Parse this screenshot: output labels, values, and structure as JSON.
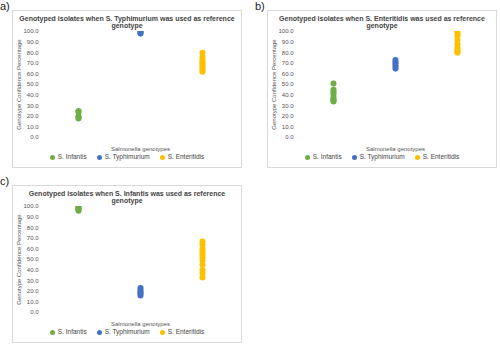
{
  "chart_data": [
    {
      "type": "scatter",
      "panel": "a)",
      "title": "Genotyped isolates when S. Typhimurium was used as reference genotype",
      "xlabel": "Salmonella genotypes",
      "ylabel": "Genotype Confidence Percentage",
      "ylim": [
        0,
        100
      ],
      "yticks": [
        {
          "value": 0,
          "label": "0.0"
        },
        {
          "value": 10,
          "label": "10.0"
        },
        {
          "value": 20,
          "label": "20.0"
        },
        {
          "value": 30,
          "label": "30.0"
        },
        {
          "value": 40,
          "label": "40.0"
        },
        {
          "value": 50,
          "label": "50.0"
        },
        {
          "value": 60,
          "label": "60.0"
        },
        {
          "value": 70,
          "label": "70.0"
        },
        {
          "value": 80,
          "label": "80.0"
        },
        {
          "value": 90,
          "label": "90.0"
        },
        {
          "value": 100,
          "label": "100.0"
        }
      ],
      "tick_labels": "y",
      "grid": false,
      "legend": "bottom",
      "series": [
        {
          "name": "S. Infantis",
          "color": "#70ad47",
          "values": [
            25,
            24,
            20,
            19,
            18
          ]
        },
        {
          "name": "S. Typhimurium",
          "color": "#4472c4",
          "values": [
            100,
            99,
            98
          ]
        },
        {
          "name": "S. Enteritidis",
          "color": "#ffc000",
          "values": [
            80,
            76,
            73,
            71,
            70,
            68,
            66,
            64,
            62
          ]
        }
      ]
    },
    {
      "type": "scatter",
      "panel": "b)",
      "title": "Genotyped isolates when S. Enteritidis was used as reference genotype",
      "xlabel": "Salmonella genotypes",
      "ylabel": "Genotype Confidence Percentage",
      "ylim": [
        0,
        100
      ],
      "yticks": [
        {
          "value": 0,
          "label": "0.0"
        },
        {
          "value": 10,
          "label": "10.0"
        },
        {
          "value": 20,
          "label": "20.0"
        },
        {
          "value": 30,
          "label": "30.0"
        },
        {
          "value": 40,
          "label": "40.0"
        },
        {
          "value": 50,
          "label": "50.0"
        },
        {
          "value": 60,
          "label": "60.0"
        },
        {
          "value": 70,
          "label": "70.0"
        },
        {
          "value": 80,
          "label": "80.0"
        },
        {
          "value": 90,
          "label": "90.0"
        },
        {
          "value": 100,
          "label": "100.0"
        }
      ],
      "tick_labels": "y",
      "grid": false,
      "legend": "bottom",
      "series": [
        {
          "name": "S. Infantis",
          "color": "#70ad47",
          "values": [
            51,
            45,
            43,
            41,
            38,
            36,
            35,
            34
          ]
        },
        {
          "name": "S. Typhimurium",
          "color": "#4472c4",
          "values": [
            73,
            71,
            69,
            67,
            65
          ]
        },
        {
          "name": "S. Enteritidis",
          "color": "#ffc000",
          "values": [
            100,
            98,
            96,
            92,
            88,
            85,
            83,
            81,
            80
          ]
        }
      ]
    },
    {
      "type": "scatter",
      "panel": "c)",
      "title": "Genotyped isolates when S. Infantis was used as reference genotype",
      "xlabel": "Salmonella genotypes",
      "ylabel": "Genotype Confidence Percentage",
      "ylim": [
        0,
        100
      ],
      "yticks": [
        {
          "value": 0,
          "label": "0.0"
        },
        {
          "value": 10,
          "label": "10.0"
        },
        {
          "value": 20,
          "label": "20.0"
        },
        {
          "value": 30,
          "label": "30.0"
        },
        {
          "value": 40,
          "label": "40.0"
        },
        {
          "value": 50,
          "label": "50.0"
        },
        {
          "value": 60,
          "label": "60.0"
        },
        {
          "value": 70,
          "label": "70.0"
        },
        {
          "value": 80,
          "label": "80.0"
        },
        {
          "value": 90,
          "label": "90.0"
        },
        {
          "value": 100,
          "label": "100.0"
        }
      ],
      "tick_labels": "y",
      "grid": false,
      "legend": "bottom",
      "series": [
        {
          "name": "S. Infantis",
          "color": "#70ad47",
          "values": [
            100,
            99,
            98,
            97,
            96
          ]
        },
        {
          "name": "S. Typhimurium",
          "color": "#4472c4",
          "values": [
            23,
            21,
            19,
            18,
            16
          ]
        },
        {
          "name": "S. Enteritidis",
          "color": "#ffc000",
          "values": [
            67,
            64,
            60,
            57,
            55,
            52,
            49,
            45,
            40,
            37,
            33
          ]
        }
      ]
    }
  ]
}
